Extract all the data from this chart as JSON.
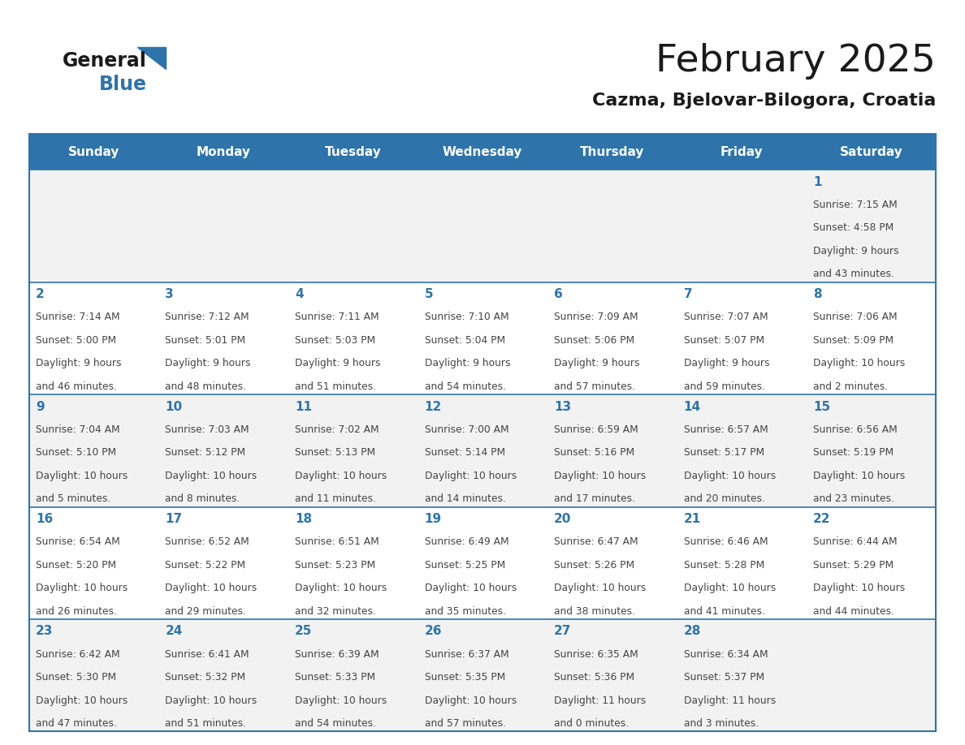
{
  "title": "February 2025",
  "subtitle": "Cazma, Bjelovar-Bilogora, Croatia",
  "days_of_week": [
    "Sunday",
    "Monday",
    "Tuesday",
    "Wednesday",
    "Thursday",
    "Friday",
    "Saturday"
  ],
  "header_bg": "#2E74AA",
  "header_text": "#FFFFFF",
  "row_bg_odd": "#F2F2F2",
  "row_bg_even": "#FFFFFF",
  "cell_border": "#2E74AA",
  "day_number_color": "#2E74AA",
  "info_text_color": "#444444",
  "calendar_data": [
    {
      "day": 1,
      "col": 6,
      "row": 0,
      "sunrise": "7:15 AM",
      "sunset": "4:58 PM",
      "daylight": "9 hours and 43 minutes."
    },
    {
      "day": 2,
      "col": 0,
      "row": 1,
      "sunrise": "7:14 AM",
      "sunset": "5:00 PM",
      "daylight": "9 hours and 46 minutes."
    },
    {
      "day": 3,
      "col": 1,
      "row": 1,
      "sunrise": "7:12 AM",
      "sunset": "5:01 PM",
      "daylight": "9 hours and 48 minutes."
    },
    {
      "day": 4,
      "col": 2,
      "row": 1,
      "sunrise": "7:11 AM",
      "sunset": "5:03 PM",
      "daylight": "9 hours and 51 minutes."
    },
    {
      "day": 5,
      "col": 3,
      "row": 1,
      "sunrise": "7:10 AM",
      "sunset": "5:04 PM",
      "daylight": "9 hours and 54 minutes."
    },
    {
      "day": 6,
      "col": 4,
      "row": 1,
      "sunrise": "7:09 AM",
      "sunset": "5:06 PM",
      "daylight": "9 hours and 57 minutes."
    },
    {
      "day": 7,
      "col": 5,
      "row": 1,
      "sunrise": "7:07 AM",
      "sunset": "5:07 PM",
      "daylight": "9 hours and 59 minutes."
    },
    {
      "day": 8,
      "col": 6,
      "row": 1,
      "sunrise": "7:06 AM",
      "sunset": "5:09 PM",
      "daylight": "10 hours and 2 minutes."
    },
    {
      "day": 9,
      "col": 0,
      "row": 2,
      "sunrise": "7:04 AM",
      "sunset": "5:10 PM",
      "daylight": "10 hours and 5 minutes."
    },
    {
      "day": 10,
      "col": 1,
      "row": 2,
      "sunrise": "7:03 AM",
      "sunset": "5:12 PM",
      "daylight": "10 hours and 8 minutes."
    },
    {
      "day": 11,
      "col": 2,
      "row": 2,
      "sunrise": "7:02 AM",
      "sunset": "5:13 PM",
      "daylight": "10 hours and 11 minutes."
    },
    {
      "day": 12,
      "col": 3,
      "row": 2,
      "sunrise": "7:00 AM",
      "sunset": "5:14 PM",
      "daylight": "10 hours and 14 minutes."
    },
    {
      "day": 13,
      "col": 4,
      "row": 2,
      "sunrise": "6:59 AM",
      "sunset": "5:16 PM",
      "daylight": "10 hours and 17 minutes."
    },
    {
      "day": 14,
      "col": 5,
      "row": 2,
      "sunrise": "6:57 AM",
      "sunset": "5:17 PM",
      "daylight": "10 hours and 20 minutes."
    },
    {
      "day": 15,
      "col": 6,
      "row": 2,
      "sunrise": "6:56 AM",
      "sunset": "5:19 PM",
      "daylight": "10 hours and 23 minutes."
    },
    {
      "day": 16,
      "col": 0,
      "row": 3,
      "sunrise": "6:54 AM",
      "sunset": "5:20 PM",
      "daylight": "10 hours and 26 minutes."
    },
    {
      "day": 17,
      "col": 1,
      "row": 3,
      "sunrise": "6:52 AM",
      "sunset": "5:22 PM",
      "daylight": "10 hours and 29 minutes."
    },
    {
      "day": 18,
      "col": 2,
      "row": 3,
      "sunrise": "6:51 AM",
      "sunset": "5:23 PM",
      "daylight": "10 hours and 32 minutes."
    },
    {
      "day": 19,
      "col": 3,
      "row": 3,
      "sunrise": "6:49 AM",
      "sunset": "5:25 PM",
      "daylight": "10 hours and 35 minutes."
    },
    {
      "day": 20,
      "col": 4,
      "row": 3,
      "sunrise": "6:47 AM",
      "sunset": "5:26 PM",
      "daylight": "10 hours and 38 minutes."
    },
    {
      "day": 21,
      "col": 5,
      "row": 3,
      "sunrise": "6:46 AM",
      "sunset": "5:28 PM",
      "daylight": "10 hours and 41 minutes."
    },
    {
      "day": 22,
      "col": 6,
      "row": 3,
      "sunrise": "6:44 AM",
      "sunset": "5:29 PM",
      "daylight": "10 hours and 44 minutes."
    },
    {
      "day": 23,
      "col": 0,
      "row": 4,
      "sunrise": "6:42 AM",
      "sunset": "5:30 PM",
      "daylight": "10 hours and 47 minutes."
    },
    {
      "day": 24,
      "col": 1,
      "row": 4,
      "sunrise": "6:41 AM",
      "sunset": "5:32 PM",
      "daylight": "10 hours and 51 minutes."
    },
    {
      "day": 25,
      "col": 2,
      "row": 4,
      "sunrise": "6:39 AM",
      "sunset": "5:33 PM",
      "daylight": "10 hours and 54 minutes."
    },
    {
      "day": 26,
      "col": 3,
      "row": 4,
      "sunrise": "6:37 AM",
      "sunset": "5:35 PM",
      "daylight": "10 hours and 57 minutes."
    },
    {
      "day": 27,
      "col": 4,
      "row": 4,
      "sunrise": "6:35 AM",
      "sunset": "5:36 PM",
      "daylight": "11 hours and 0 minutes."
    },
    {
      "day": 28,
      "col": 5,
      "row": 4,
      "sunrise": "6:34 AM",
      "sunset": "5:37 PM",
      "daylight": "11 hours and 3 minutes."
    }
  ],
  "num_rows": 5,
  "logo_text_general": "General",
  "logo_text_blue": "Blue",
  "logo_color_general": "#1a1a1a",
  "logo_color_blue": "#2E74AA",
  "logo_triangle_color": "#2E74AA"
}
